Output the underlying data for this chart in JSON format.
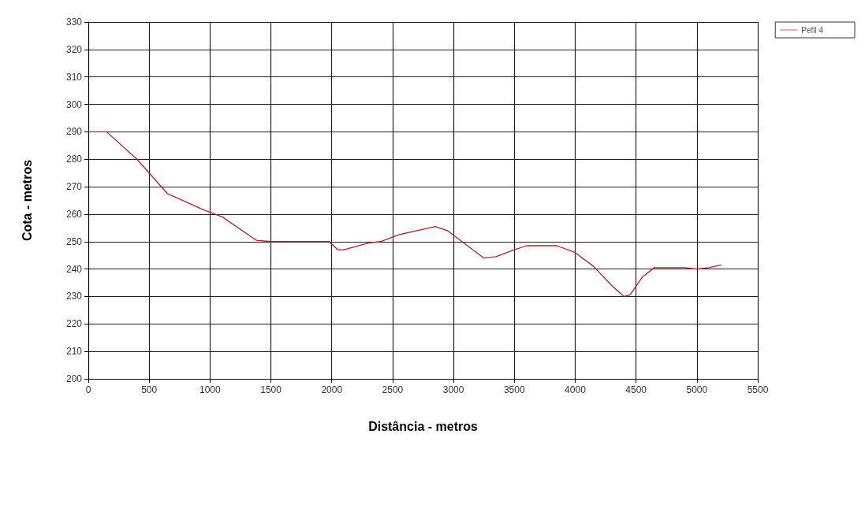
{
  "chart_data": {
    "type": "line",
    "xlabel": "Distância - metros",
    "ylabel": "Cota - metros",
    "xlim": [
      0,
      5500
    ],
    "xticks": [
      0,
      500,
      1000,
      1500,
      2000,
      2500,
      3000,
      3500,
      4000,
      4500,
      5000,
      5500
    ],
    "ylim": [
      200,
      330
    ],
    "yticks": [
      200,
      210,
      220,
      230,
      240,
      250,
      260,
      270,
      280,
      290,
      300,
      310,
      320,
      330
    ],
    "grid": true,
    "legend": "top right",
    "marker": "none",
    "line_style": "solid",
    "series": [
      {
        "name": "Pefil 4",
        "color": "#b22222",
        "x": [
          0,
          150,
          400,
          650,
          950,
          1100,
          1380,
          1500,
          1980,
          2050,
          2100,
          2300,
          2400,
          2550,
          2700,
          2850,
          2950,
          3100,
          3250,
          3350,
          3500,
          3600,
          3850,
          4000,
          4150,
          4300,
          4400,
          4450,
          4550,
          4650,
          4900,
          5000,
          5100,
          5200
        ],
        "values": [
          290,
          290,
          280,
          267.5,
          261.5,
          259,
          250.5,
          250,
          250,
          247,
          247,
          249.5,
          250,
          252.5,
          254,
          255.5,
          254,
          249,
          244,
          244.5,
          247,
          248.5,
          248.5,
          246,
          241,
          234,
          230,
          230.5,
          237,
          240.5,
          240.5,
          240,
          240.5,
          241.5
        ]
      }
    ]
  }
}
